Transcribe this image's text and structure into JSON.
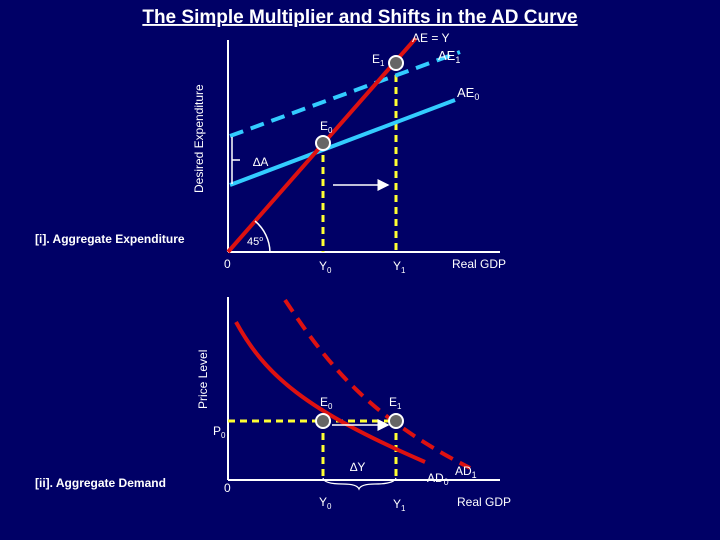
{
  "title": "The Simple Multiplier and Shifts in the AD Curve",
  "colors": {
    "background": "#000066",
    "ae_line": "#33ccff",
    "ad_curve": "#dd1111",
    "guide": "#ffff33",
    "axis": "#ffffff"
  },
  "panel_top": {
    "label": "[i]. Aggregate Expenditure",
    "y_axis_label": "Desired Expenditure",
    "x_axis_label": "Real GDP",
    "origin_label": "0",
    "angle_label": "45",
    "angle_unit": "o",
    "line_labels": {
      "ae_eq_y": "AE = Y",
      "ae1_main": "AE",
      "ae1_sub": "1",
      "ae0_main": "AE",
      "ae0_sub": "0"
    },
    "points": {
      "e0_main": "E",
      "e0_sub": "0",
      "e1_main": "E",
      "e1_sub": "1"
    },
    "delta_a": "∆A",
    "ticks": {
      "y0_main": "Y",
      "y0_sub": "0",
      "y1_main": "Y",
      "y1_sub": "1"
    }
  },
  "panel_bottom": {
    "label": "[ii]. Aggregate Demand",
    "y_axis_label": "Price Level",
    "x_axis_label": "Real GDP",
    "origin_label": "0",
    "p0_main": "P",
    "p0_sub": "0",
    "points": {
      "e0_main": "E",
      "e0_sub": "0",
      "e1_main": "E",
      "e1_sub": "1"
    },
    "delta_y": "∆Y",
    "curves": {
      "ad0_main": "AD",
      "ad0_sub": "0",
      "ad1_main": "AD",
      "ad1_sub": "1"
    },
    "ticks": {
      "y0_main": "Y",
      "y0_sub": "0",
      "y1_main": "Y",
      "y1_sub": "1"
    }
  }
}
